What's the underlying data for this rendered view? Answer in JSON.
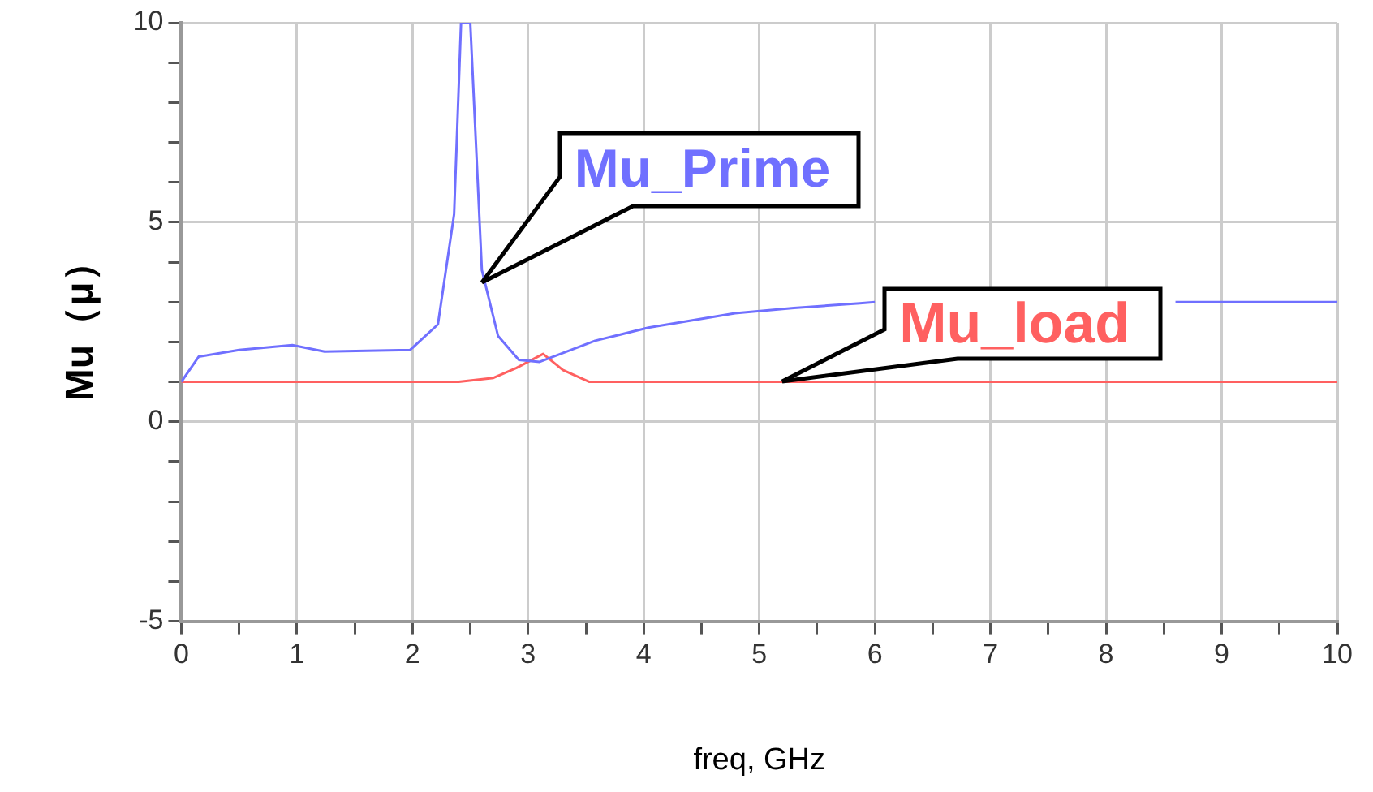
{
  "chart_data": {
    "type": "line",
    "xlabel": "freq, GHz",
    "ylabel": "Mu（μ）",
    "xlim": [
      0,
      10
    ],
    "ylim": [
      -5,
      10
    ],
    "xticks": [
      0,
      {
        "value": 0.5,
        "label": null
      },
      1,
      {
        "value": 1.5,
        "label": null
      },
      2,
      {
        "value": 2.5,
        "label": null
      },
      3,
      {
        "value": 3.5,
        "label": null
      },
      4,
      {
        "value": 4.5,
        "label": null
      },
      5,
      {
        "value": 5.5,
        "label": null
      },
      6,
      {
        "value": 6.5,
        "label": null
      },
      7,
      {
        "value": 7.5,
        "label": null
      },
      8,
      {
        "value": 8.5,
        "label": null
      },
      9,
      {
        "value": 9.5,
        "label": null
      },
      10
    ],
    "yticks": [
      -5,
      {
        "value": -4,
        "label": null
      },
      {
        "value": -3,
        "label": null
      },
      {
        "value": -2,
        "label": null
      },
      {
        "value": -1,
        "label": null
      },
      0,
      {
        "value": 1,
        "label": null
      },
      {
        "value": 2,
        "label": null
      },
      {
        "value": 3,
        "label": null
      },
      {
        "value": 4,
        "label": null
      },
      5,
      {
        "value": 6,
        "label": null
      },
      {
        "value": 7,
        "label": null
      },
      {
        "value": 8,
        "label": null
      },
      {
        "value": 9,
        "label": null
      },
      10
    ],
    "grid": true,
    "legend": false,
    "marker": "none",
    "line_style": "solid",
    "series": [
      {
        "color": "#7070ff",
        "x": [
          0,
          0.15,
          0.5,
          0.96,
          1.24,
          1.6,
          1.98,
          2.22,
          2.36,
          2.42,
          2.5,
          2.6,
          2.74,
          2.92,
          3.1,
          3.58,
          4.04,
          4.79,
          5.3,
          5.87,
          6.0,
          7,
          8,
          8.6,
          9,
          10
        ],
        "values": [
          1.0,
          1.63,
          1.8,
          1.92,
          1.76,
          1.78,
          1.8,
          2.44,
          5.2,
          10,
          10,
          3.8,
          2.15,
          1.55,
          1.5,
          2.03,
          2.36,
          2.72,
          2.85,
          2.97,
          3.0,
          null,
          null,
          3.0,
          3.0,
          3.0
        ]
      },
      {
        "color": "#ff6060",
        "x": [
          0,
          1,
          2,
          2.4,
          2.7,
          2.9,
          3.13,
          3.3,
          3.53,
          4,
          6,
          8,
          10
        ],
        "values": [
          1.0,
          1.0,
          1.0,
          1.0,
          1.1,
          1.35,
          1.7,
          1.3,
          1.0,
          1.0,
          1.0,
          1.0,
          1.0
        ]
      }
    ],
    "annotations": [
      {
        "text": "Mu_Prime",
        "x": 2.6,
        "y": 3.5
      },
      {
        "text": "Mu_load",
        "x": 5.2,
        "y": 1.0
      }
    ]
  }
}
